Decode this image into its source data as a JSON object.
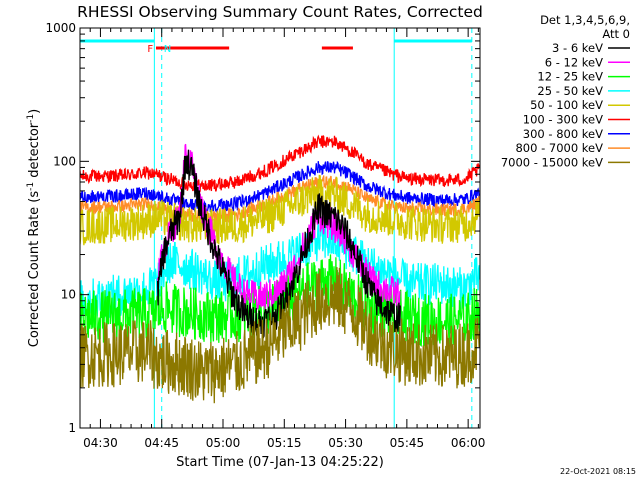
{
  "chart_data": {
    "type": "line",
    "title": "RHESSI Observing Summary Count Rates, Corrected",
    "xlabel": "Start Time (07-Jan-13 04:25:22)",
    "ylabel_parts": [
      "Corrected Count Rate (s",
      "-1",
      " detector",
      "-1",
      ")"
    ],
    "x_range_min": [
      -0.4,
      97.5
    ],
    "y_scale": "log",
    "y_range": [
      1,
      1000
    ],
    "x_ticks": [
      {
        "t": 4.6,
        "label": "04:30"
      },
      {
        "t": 19.6,
        "label": "04:45"
      },
      {
        "t": 34.6,
        "label": "05:00"
      },
      {
        "t": 49.6,
        "label": "05:15"
      },
      {
        "t": 64.6,
        "label": "05:30"
      },
      {
        "t": 79.6,
        "label": "05:45"
      },
      {
        "t": 94.6,
        "label": "06:00"
      }
    ],
    "y_ticks": [
      {
        "v": 1,
        "label": "1"
      },
      {
        "v": 10,
        "label": "10"
      },
      {
        "v": 100,
        "label": "100"
      },
      {
        "v": 1000,
        "label": "1000"
      }
    ],
    "legend": {
      "header": [
        "Det 1,3,4,5,6,9,",
        "Att 0"
      ],
      "entries": [
        {
          "label": "3 - 6 keV",
          "color": "#000000"
        },
        {
          "label": "6 - 12 keV",
          "color": "#ff00ff"
        },
        {
          "label": "12 - 25 keV",
          "color": "#00ff00"
        },
        {
          "label": "25 - 50 keV",
          "color": "#00ffff"
        },
        {
          "label": "50 - 100 keV",
          "color": "#d2c800"
        },
        {
          "label": "100 - 300 keV",
          "color": "#ff0000"
        },
        {
          "label": "300 - 800 keV",
          "color": "#0000ff"
        },
        {
          "label": "800 - 7000 keV",
          "color": "#ff8c28"
        },
        {
          "label": "7000 - 15000 keV",
          "color": "#8c7800"
        }
      ]
    },
    "flag_markers": [
      {
        "label": "F",
        "color": "#ff0000",
        "t": 17.8
      },
      {
        "label": "N",
        "color": "#00ffff",
        "t": 19.6
      }
    ],
    "night_bars": [
      {
        "t_start": -0.4,
        "t_end": 17.8
      },
      {
        "t_start": 76.5,
        "t_end": 95.5
      }
    ],
    "flare_bars": [
      {
        "t_start": 18.2,
        "t_end": 36.1
      },
      {
        "t_start": 58.8,
        "t_end": 66.4
      }
    ],
    "boundaries": [
      {
        "t": 17.8,
        "style": "solid"
      },
      {
        "t": 19.6,
        "style": "dashed"
      },
      {
        "t": 76.5,
        "style": "solid"
      },
      {
        "t": 95.5,
        "style": "dashed"
      }
    ],
    "series": [
      {
        "name": "100 - 300 keV",
        "color": "#ff0000",
        "noise": 0.05,
        "points": [
          [
            -0.4,
            77
          ],
          [
            10,
            78
          ],
          [
            16,
            82
          ],
          [
            19,
            78
          ],
          [
            25,
            68
          ],
          [
            30,
            65
          ],
          [
            38,
            70
          ],
          [
            45,
            85
          ],
          [
            52,
            112
          ],
          [
            58,
            140
          ],
          [
            62,
            140
          ],
          [
            66,
            118
          ],
          [
            70,
            95
          ],
          [
            76,
            80
          ],
          [
            80,
            74
          ],
          [
            88,
            72
          ],
          [
            94,
            73
          ],
          [
            96,
            82
          ],
          [
            97.5,
            88
          ]
        ]
      },
      {
        "name": "300 - 800 keV",
        "color": "#0000ff",
        "noise": 0.05,
        "points": [
          [
            -0.4,
            54
          ],
          [
            10,
            55
          ],
          [
            16,
            58
          ],
          [
            19,
            55
          ],
          [
            25,
            48
          ],
          [
            30,
            46
          ],
          [
            38,
            48
          ],
          [
            45,
            58
          ],
          [
            52,
            74
          ],
          [
            58,
            90
          ],
          [
            62,
            90
          ],
          [
            66,
            78
          ],
          [
            70,
            65
          ],
          [
            76,
            56
          ],
          [
            80,
            53
          ],
          [
            88,
            51
          ],
          [
            94,
            52
          ],
          [
            96,
            56
          ],
          [
            97.5,
            58
          ]
        ]
      },
      {
        "name": "800 - 7000 keV",
        "color": "#ff8c28",
        "noise": 0.05,
        "points": [
          [
            -0.4,
            45
          ],
          [
            10,
            46
          ],
          [
            16,
            48
          ],
          [
            19,
            45
          ],
          [
            25,
            40
          ],
          [
            30,
            38
          ],
          [
            38,
            40
          ],
          [
            45,
            48
          ],
          [
            52,
            60
          ],
          [
            58,
            70
          ],
          [
            62,
            70
          ],
          [
            66,
            62
          ],
          [
            70,
            52
          ],
          [
            76,
            46
          ],
          [
            80,
            44
          ],
          [
            88,
            43
          ],
          [
            94,
            44
          ],
          [
            96,
            47
          ],
          [
            97.5,
            50
          ]
        ]
      },
      {
        "name": "50 - 100 keV",
        "color": "#d2c800",
        "noise": 0.14,
        "points": [
          [
            -0.4,
            32
          ],
          [
            10,
            34
          ],
          [
            16,
            36
          ],
          [
            19,
            38
          ],
          [
            25,
            34
          ],
          [
            30,
            32
          ],
          [
            38,
            33
          ],
          [
            45,
            38
          ],
          [
            52,
            48
          ],
          [
            58,
            58
          ],
          [
            62,
            56
          ],
          [
            66,
            48
          ],
          [
            70,
            40
          ],
          [
            76,
            37
          ],
          [
            80,
            35
          ],
          [
            88,
            33
          ],
          [
            94,
            34
          ],
          [
            96,
            38
          ],
          [
            97.5,
            40
          ]
        ]
      },
      {
        "name": "25 - 50 keV",
        "color": "#00ffff",
        "noise": 0.16,
        "points": [
          [
            -0.4,
            9
          ],
          [
            10,
            10
          ],
          [
            16,
            11
          ],
          [
            18,
            12
          ],
          [
            22,
            18
          ],
          [
            28,
            15
          ],
          [
            34,
            12
          ],
          [
            40,
            14
          ],
          [
            46,
            17
          ],
          [
            52,
            20
          ],
          [
            58,
            26
          ],
          [
            62,
            25
          ],
          [
            66,
            21
          ],
          [
            70,
            17
          ],
          [
            76,
            14
          ],
          [
            80,
            12
          ],
          [
            88,
            12
          ],
          [
            94,
            11
          ],
          [
            96,
            13
          ],
          [
            97.5,
            14
          ]
        ]
      },
      {
        "name": "12 - 25 keV",
        "color": "#00ff00",
        "noise": 0.2,
        "points": [
          [
            -0.4,
            6.8
          ],
          [
            10,
            7
          ],
          [
            17,
            7.2
          ],
          [
            20,
            8
          ],
          [
            26,
            7.4
          ],
          [
            32,
            6.8
          ],
          [
            40,
            7
          ],
          [
            46,
            7.8
          ],
          [
            52,
            9.5
          ],
          [
            56,
            11.5
          ],
          [
            60,
            13
          ],
          [
            63,
            12
          ],
          [
            66,
            10
          ],
          [
            70,
            8
          ],
          [
            76,
            7.2
          ],
          [
            80,
            6.6
          ],
          [
            88,
            6.4
          ],
          [
            94,
            6.5
          ],
          [
            96,
            7.2
          ],
          [
            97.5,
            7.5
          ]
        ]
      },
      {
        "name": "6 - 12 keV",
        "color": "#ff00ff",
        "noise": 0.12,
        "points": [
          [
            18.6,
            13
          ],
          [
            20,
            22
          ],
          [
            22,
            30
          ],
          [
            24,
            40
          ],
          [
            25.5,
            120
          ],
          [
            27,
            95
          ],
          [
            29,
            50
          ],
          [
            31,
            33
          ],
          [
            33,
            22
          ],
          [
            35,
            17
          ],
          [
            37,
            13
          ],
          [
            40,
            10
          ],
          [
            44,
            9.5
          ],
          [
            48,
            10.5
          ],
          [
            52,
            16
          ],
          [
            55,
            26
          ],
          [
            58,
            40
          ],
          [
            60,
            35
          ],
          [
            62,
            32
          ],
          [
            64,
            28
          ],
          [
            66,
            22
          ],
          [
            68,
            17
          ],
          [
            70,
            14
          ],
          [
            72,
            12
          ],
          [
            76,
            10.5
          ],
          [
            78,
            10
          ]
        ]
      },
      {
        "name": "3 - 6 keV",
        "color": "#000000",
        "noise": 0.12,
        "points": [
          [
            18.6,
            10
          ],
          [
            20,
            20
          ],
          [
            22,
            30
          ],
          [
            24,
            38
          ],
          [
            25.5,
            105
          ],
          [
            27,
            85
          ],
          [
            29,
            46
          ],
          [
            31,
            30
          ],
          [
            33,
            20
          ],
          [
            35,
            14
          ],
          [
            37,
            10
          ],
          [
            40,
            7
          ],
          [
            44,
            6.2
          ],
          [
            48,
            7.2
          ],
          [
            52,
            13
          ],
          [
            55,
            24
          ],
          [
            58,
            45
          ],
          [
            60,
            40
          ],
          [
            62,
            38
          ],
          [
            64,
            32
          ],
          [
            66,
            24
          ],
          [
            68,
            17
          ],
          [
            70,
            12
          ],
          [
            72,
            9
          ],
          [
            76,
            7
          ],
          [
            78,
            6.6
          ]
        ]
      },
      {
        "name": "7000 - 15000 keV",
        "color": "#8c7800",
        "noise": 0.25,
        "points": [
          [
            -0.4,
            3.5
          ],
          [
            10,
            3.6
          ],
          [
            16,
            3.8
          ],
          [
            19,
            3.2
          ],
          [
            25,
            3
          ],
          [
            30,
            2.6
          ],
          [
            38,
            3
          ],
          [
            45,
            4
          ],
          [
            52,
            6
          ],
          [
            58,
            9
          ],
          [
            62,
            9.5
          ],
          [
            66,
            8
          ],
          [
            70,
            5.5
          ],
          [
            74,
            4.2
          ],
          [
            76,
            4
          ],
          [
            80,
            3.6
          ],
          [
            88,
            3.4
          ],
          [
            94,
            3.6
          ],
          [
            96,
            4
          ],
          [
            97.5,
            4.4
          ]
        ]
      }
    ],
    "footer_date": "22-Oct-2021 08:15"
  }
}
